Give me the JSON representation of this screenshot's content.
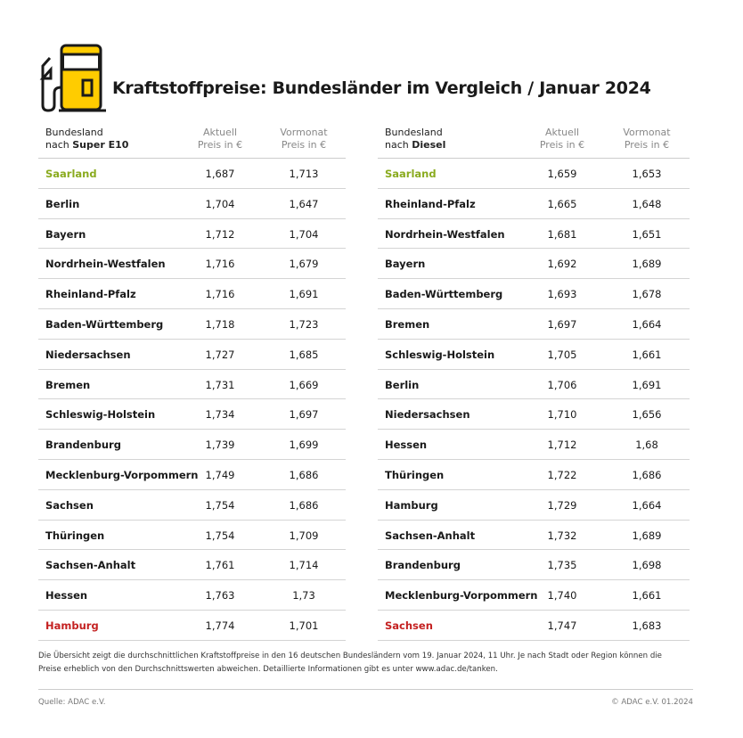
{
  "title": "Kraftstoffpreise: Bundesländer im Vergleich / Januar 2024",
  "colors": {
    "accent_yellow": "#ffcc00",
    "cheapest": "#8aab1f",
    "most_expensive": "#c42121"
  },
  "icon": "fuel-pump-icon",
  "tables": [
    {
      "header": {
        "line1": "Bundesland",
        "line2_prefix": "nach ",
        "line2_bold": "Super E10",
        "current": "Aktuell",
        "current_unit": "Preis in €",
        "previous": "Vormonat",
        "previous_unit": "Preis in €"
      },
      "rows": [
        {
          "state": "Saarland",
          "current": "1,687",
          "previous": "1,713",
          "highlight": "cheapest"
        },
        {
          "state": "Berlin",
          "current": "1,704",
          "previous": "1,647"
        },
        {
          "state": "Bayern",
          "current": "1,712",
          "previous": "1,704"
        },
        {
          "state": "Nordrhein-Westfalen",
          "current": "1,716",
          "previous": "1,679"
        },
        {
          "state": "Rheinland-Pfalz",
          "current": "1,716",
          "previous": "1,691"
        },
        {
          "state": "Baden-Württemberg",
          "current": "1,718",
          "previous": "1,723"
        },
        {
          "state": "Niedersachsen",
          "current": "1,727",
          "previous": "1,685"
        },
        {
          "state": "Bremen",
          "current": "1,731",
          "previous": "1,669"
        },
        {
          "state": "Schleswig-Holstein",
          "current": "1,734",
          "previous": "1,697"
        },
        {
          "state": "Brandenburg",
          "current": "1,739",
          "previous": "1,699"
        },
        {
          "state": "Mecklenburg-Vorpommern",
          "current": "1,749",
          "previous": "1,686"
        },
        {
          "state": "Sachsen",
          "current": "1,754",
          "previous": "1,686"
        },
        {
          "state": "Thüringen",
          "current": "1,754",
          "previous": "1,709"
        },
        {
          "state": "Sachsen-Anhalt",
          "current": "1,761",
          "previous": "1,714"
        },
        {
          "state": "Hessen",
          "current": "1,763",
          "previous": "1,73"
        },
        {
          "state": "Hamburg",
          "current": "1,774",
          "previous": "1,701",
          "highlight": "most_expensive"
        }
      ]
    },
    {
      "header": {
        "line1": "Bundesland",
        "line2_prefix": "nach ",
        "line2_bold": "Diesel",
        "current": "Aktuell",
        "current_unit": "Preis in €",
        "previous": "Vormonat",
        "previous_unit": "Preis in €"
      },
      "rows": [
        {
          "state": "Saarland",
          "current": "1,659",
          "previous": "1,653",
          "highlight": "cheapest"
        },
        {
          "state": "Rheinland-Pfalz",
          "current": "1,665",
          "previous": "1,648"
        },
        {
          "state": "Nordrhein-Westfalen",
          "current": "1,681",
          "previous": "1,651"
        },
        {
          "state": "Bayern",
          "current": "1,692",
          "previous": "1,689"
        },
        {
          "state": "Baden-Württemberg",
          "current": "1,693",
          "previous": "1,678"
        },
        {
          "state": "Bremen",
          "current": "1,697",
          "previous": "1,664"
        },
        {
          "state": "Schleswig-Holstein",
          "current": "1,705",
          "previous": "1,661"
        },
        {
          "state": "Berlin",
          "current": "1,706",
          "previous": "1,691"
        },
        {
          "state": "Niedersachsen",
          "current": "1,710",
          "previous": "1,656"
        },
        {
          "state": "Hessen",
          "current": "1,712",
          "previous": "1,68"
        },
        {
          "state": "Thüringen",
          "current": "1,722",
          "previous": "1,686"
        },
        {
          "state": "Hamburg",
          "current": "1,729",
          "previous": "1,664"
        },
        {
          "state": "Sachsen-Anhalt",
          "current": "1,732",
          "previous": "1,689"
        },
        {
          "state": "Brandenburg",
          "current": "1,735",
          "previous": "1,698"
        },
        {
          "state": "Mecklenburg-Vorpommern",
          "current": "1,740",
          "previous": "1,661"
        },
        {
          "state": "Sachsen",
          "current": "1,747",
          "previous": "1,683",
          "highlight": "most_expensive"
        }
      ]
    }
  ],
  "note": "Die Übersicht zeigt die durchschnittlichen Kraftstoffpreise in den 16 deutschen Bundesländern vom 19. Januar 2024, 11 Uhr. Je nach Stadt oder Region können die Preise erheblich von den Durchschnittswerten abweichen. Detaillierte Informationen gibt es unter www.adac.de/tanken.",
  "source": "Quelle: ADAC e.V.",
  "copyright": "© ADAC e.V. 01.2024"
}
